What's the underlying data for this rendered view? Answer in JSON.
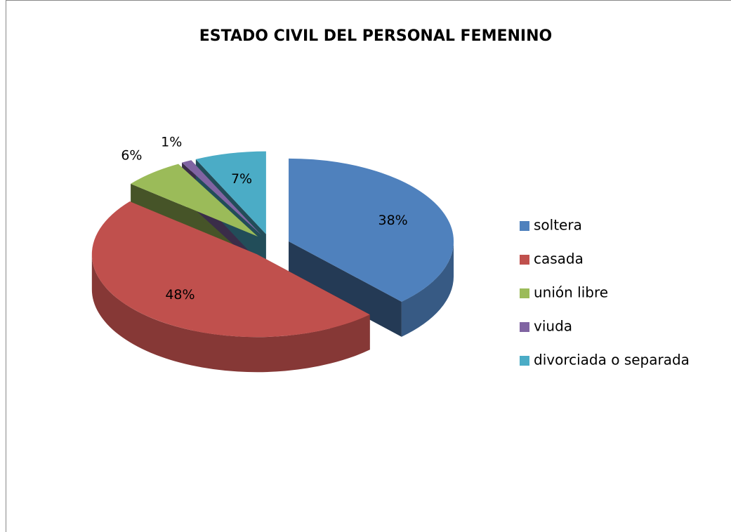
{
  "chart_data": {
    "type": "pie",
    "title": "ESTADO CIVIL DEL PERSONAL FEMENINO",
    "categories": [
      "soltera",
      "casada",
      "unión libre",
      "viuda",
      "divorciada o separada"
    ],
    "values": [
      38,
      48,
      6,
      1,
      7
    ],
    "value_labels": [
      "38%",
      "48%",
      "6%",
      "1%",
      "7%"
    ],
    "colors": [
      "#4f81bd",
      "#c0504d",
      "#9bbb59",
      "#8064a2",
      "#4bacc6"
    ],
    "legend": "right"
  }
}
